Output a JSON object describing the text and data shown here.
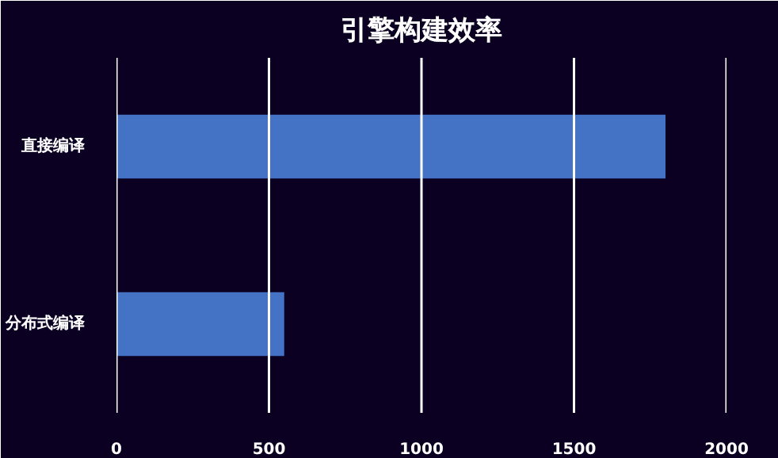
{
  "chart_data": {
    "type": "bar",
    "orientation": "horizontal",
    "title": "引擎构建效率",
    "categories": [
      "直接编译",
      "分布式编译"
    ],
    "values": [
      1800,
      550
    ],
    "color": "#4472c4",
    "xlim": [
      0,
      2000
    ],
    "xticks": [
      0,
      500,
      1000,
      1500,
      2000
    ],
    "grid": "x"
  }
}
